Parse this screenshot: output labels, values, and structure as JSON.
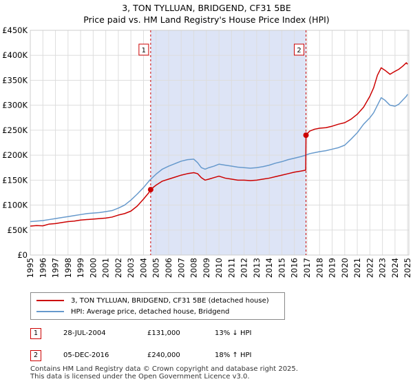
{
  "chart_data": {
    "type": "line",
    "title": "3, TON TYLLUAN, BRIDGEND, CF31 5BE",
    "subtitle": "Price paid vs. HM Land Registry's House Price Index (HPI)",
    "xlabel": "",
    "ylabel": "",
    "xlim": [
      1995,
      2025.1
    ],
    "ylim": [
      0,
      450000
    ],
    "y_ticks": [
      {
        "value": 0,
        "label": "£0"
      },
      {
        "value": 50000,
        "label": "£50K"
      },
      {
        "value": 100000,
        "label": "£100K"
      },
      {
        "value": 150000,
        "label": "£150K"
      },
      {
        "value": 200000,
        "label": "£200K"
      },
      {
        "value": 250000,
        "label": "£250K"
      },
      {
        "value": 300000,
        "label": "£300K"
      },
      {
        "value": 350000,
        "label": "£350K"
      },
      {
        "value": 400000,
        "label": "£400K"
      },
      {
        "value": 450000,
        "label": "£450K"
      }
    ],
    "x_ticks": [
      "1995",
      "1996",
      "1997",
      "1998",
      "1999",
      "2000",
      "2001",
      "2002",
      "2003",
      "2004",
      "2005",
      "2006",
      "2007",
      "2008",
      "2009",
      "2010",
      "2011",
      "2012",
      "2013",
      "2014",
      "2015",
      "2016",
      "2017",
      "2018",
      "2019",
      "2020",
      "2021",
      "2022",
      "2023",
      "2024",
      "2025"
    ],
    "grid": true,
    "shaded_region": [
      2004.57,
      2016.92
    ],
    "series": [
      {
        "name": "3, TON TYLLUAN, BRIDGEND, CF31 5BE (detached house)",
        "color": "#cc0000",
        "x": [
          1995.0,
          1995.5,
          1996.0,
          1996.5,
          1997.0,
          1997.5,
          1998.0,
          1998.5,
          1999.0,
          1999.5,
          2000.0,
          2000.5,
          2001.0,
          2001.5,
          2002.0,
          2002.5,
          2003.0,
          2003.5,
          2004.0,
          2004.4,
          2004.57,
          2004.8,
          2005.0,
          2005.5,
          2006.0,
          2006.5,
          2007.0,
          2007.5,
          2008.0,
          2008.3,
          2008.6,
          2008.9,
          2009.2,
          2009.6,
          2010.0,
          2010.5,
          2011.0,
          2011.5,
          2012.0,
          2012.5,
          2013.0,
          2013.5,
          2014.0,
          2014.5,
          2015.0,
          2015.5,
          2016.0,
          2016.5,
          2016.9,
          2016.92,
          2017.2,
          2017.6,
          2018.0,
          2018.5,
          2019.0,
          2019.5,
          2020.0,
          2020.5,
          2021.0,
          2021.5,
          2022.0,
          2022.3,
          2022.6,
          2022.9,
          2023.2,
          2023.6,
          2024.0,
          2024.3,
          2024.6,
          2024.9,
          2025.0
        ],
        "y": [
          58000,
          59000,
          58500,
          62000,
          63000,
          65000,
          67000,
          68000,
          70000,
          71000,
          72000,
          73000,
          74000,
          76000,
          80000,
          83000,
          88000,
          98000,
          112000,
          124000,
          131000,
          136000,
          140000,
          148000,
          152000,
          156000,
          160000,
          163000,
          165000,
          163000,
          155000,
          150000,
          152000,
          155000,
          158000,
          154000,
          152000,
          150000,
          150000,
          149000,
          150000,
          152000,
          154000,
          157000,
          160000,
          163000,
          166000,
          168000,
          170000,
          240000,
          248000,
          252000,
          254000,
          255000,
          258000,
          262000,
          265000,
          272000,
          282000,
          296000,
          318000,
          335000,
          360000,
          375000,
          370000,
          362000,
          368000,
          372000,
          378000,
          385000,
          382000
        ]
      },
      {
        "name": "HPI: Average price, detached house, Bridgend",
        "color": "#6699cc",
        "x": [
          1995.0,
          1995.5,
          1996.0,
          1996.5,
          1997.0,
          1997.5,
          1998.0,
          1998.5,
          1999.0,
          1999.5,
          2000.0,
          2000.5,
          2001.0,
          2001.5,
          2002.0,
          2002.5,
          2003.0,
          2003.5,
          2004.0,
          2004.5,
          2005.0,
          2005.5,
          2006.0,
          2006.5,
          2007.0,
          2007.5,
          2008.0,
          2008.3,
          2008.6,
          2008.9,
          2009.2,
          2009.6,
          2010.0,
          2010.5,
          2011.0,
          2011.5,
          2012.0,
          2012.5,
          2013.0,
          2013.5,
          2014.0,
          2014.5,
          2015.0,
          2015.5,
          2016.0,
          2016.5,
          2016.9,
          2017.2,
          2017.6,
          2018.0,
          2018.5,
          2019.0,
          2019.5,
          2020.0,
          2020.5,
          2021.0,
          2021.5,
          2022.0,
          2022.3,
          2022.6,
          2022.9,
          2023.2,
          2023.6,
          2024.0,
          2024.3,
          2024.6,
          2024.9,
          2025.0
        ],
        "y": [
          67000,
          68000,
          69000,
          71000,
          73000,
          75000,
          77000,
          79000,
          81000,
          83000,
          84000,
          85000,
          87000,
          89000,
          94000,
          100000,
          110000,
          122000,
          135000,
          150000,
          162000,
          172000,
          178000,
          183000,
          188000,
          191000,
          192000,
          185000,
          175000,
          172000,
          175000,
          178000,
          182000,
          180000,
          178000,
          176000,
          175000,
          174000,
          175000,
          177000,
          180000,
          184000,
          187000,
          191000,
          194000,
          197000,
          200000,
          203000,
          205000,
          207000,
          209000,
          212000,
          215000,
          220000,
          232000,
          245000,
          262000,
          275000,
          285000,
          300000,
          315000,
          310000,
          300000,
          298000,
          302000,
          310000,
          318000,
          322000
        ]
      }
    ],
    "annotations": [
      {
        "label": "1",
        "x": 2004.57,
        "y": 131000
      },
      {
        "label": "2",
        "x": 2016.92,
        "y": 240000
      }
    ]
  },
  "legend": {
    "property": "3, TON TYLLUAN, BRIDGEND, CF31 5BE (detached house)",
    "hpi": "HPI: Average price, detached house, Bridgend"
  },
  "sales": [
    {
      "num": "1",
      "date": "28-JUL-2004",
      "price": "£131,000",
      "hpi": "13% ↓ HPI"
    },
    {
      "num": "2",
      "date": "05-DEC-2016",
      "price": "£240,000",
      "hpi": "18% ↑ HPI"
    }
  ],
  "footer": {
    "line1": "Contains HM Land Registry data © Crown copyright and database right 2025.",
    "line2": "This data is licensed under the Open Government Licence v3.0."
  }
}
